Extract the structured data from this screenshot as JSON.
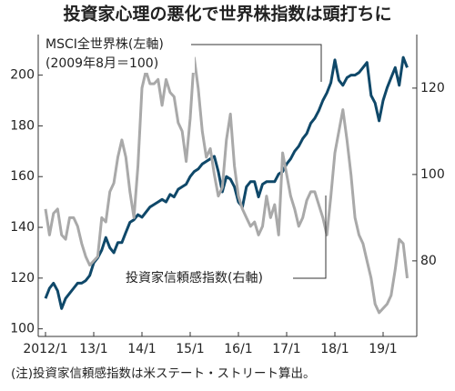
{
  "chart_data": {
    "type": "line",
    "title": "投資家心理の悪化で世界株指数は頭打ちに",
    "annotation": "(2009年8月＝100)",
    "note": "(注)投資家信頼感指数は米ステート・ストリート算出。",
    "categories": [
      "2012/1",
      null,
      null,
      null,
      null,
      null,
      null,
      null,
      null,
      null,
      null,
      null,
      "13/1",
      null,
      null,
      null,
      null,
      null,
      null,
      null,
      null,
      null,
      null,
      null,
      "14/1",
      null,
      null,
      null,
      null,
      null,
      null,
      null,
      null,
      null,
      null,
      null,
      "15/1",
      null,
      null,
      null,
      null,
      null,
      null,
      null,
      null,
      null,
      null,
      null,
      "16/1",
      null,
      null,
      null,
      null,
      null,
      null,
      null,
      null,
      null,
      null,
      null,
      "17/1",
      null,
      null,
      null,
      null,
      null,
      null,
      null,
      null,
      null,
      null,
      null,
      "18/1",
      null,
      null,
      null,
      null,
      null,
      null,
      null,
      null,
      null,
      null,
      null,
      "19/1",
      null,
      null,
      null,
      null,
      null,
      null
    ],
    "series": [
      {
        "name": "MSCI全世界株(左軸)",
        "color": "#0f4869",
        "axis": "y",
        "values": [
          112,
          116,
          118,
          115,
          108,
          112,
          114,
          116,
          118,
          118,
          119,
          121,
          126,
          128,
          131,
          136,
          132,
          130,
          134,
          134,
          138,
          142,
          143,
          145,
          144,
          146,
          148,
          149,
          150,
          151,
          150,
          153,
          152,
          155,
          156,
          157,
          160,
          162,
          163,
          165,
          166,
          167,
          168,
          162,
          154,
          160,
          159,
          156,
          150,
          148,
          156,
          158,
          158,
          152,
          157,
          158,
          158,
          158,
          161,
          162,
          165,
          167,
          170,
          172,
          175,
          177,
          181,
          183,
          186,
          190,
          193,
          197,
          206,
          198,
          196,
          199,
          200,
          200,
          201,
          203,
          205,
          192,
          189,
          182,
          190,
          195,
          199,
          203,
          196,
          207,
          203
        ]
      },
      {
        "name": "投資家信頼感指数(右軸)",
        "color": "#a9a9a9",
        "axis": "y2",
        "values": [
          92,
          86,
          91,
          92,
          86,
          85,
          90,
          90,
          88,
          84,
          81,
          79,
          80,
          81,
          90,
          89,
          96,
          98,
          104,
          108,
          104,
          96,
          90,
          102,
          120,
          124,
          121,
          121,
          122,
          116,
          122,
          119,
          118,
          112,
          110,
          103,
          113,
          127,
          120,
          110,
          104,
          106,
          100,
          95,
          97,
          108,
          114,
          102,
          95,
          92,
          90,
          88,
          89,
          86,
          88,
          95,
          90,
          93,
          86,
          105,
          100,
          95,
          92,
          88,
          90,
          94,
          96,
          96,
          93,
          90,
          86,
          95,
          105,
          110,
          115,
          108,
          100,
          90,
          86,
          84,
          80,
          76,
          70,
          68,
          69,
          70,
          72,
          78,
          85,
          84,
          76
        ]
      }
    ],
    "ylim": [
      97,
      216
    ],
    "yticks": [
      100,
      120,
      140,
      160,
      180,
      200
    ],
    "y2lim": [
      62.5,
      132.4
    ],
    "y2ticks": [
      80,
      100,
      120
    ]
  }
}
